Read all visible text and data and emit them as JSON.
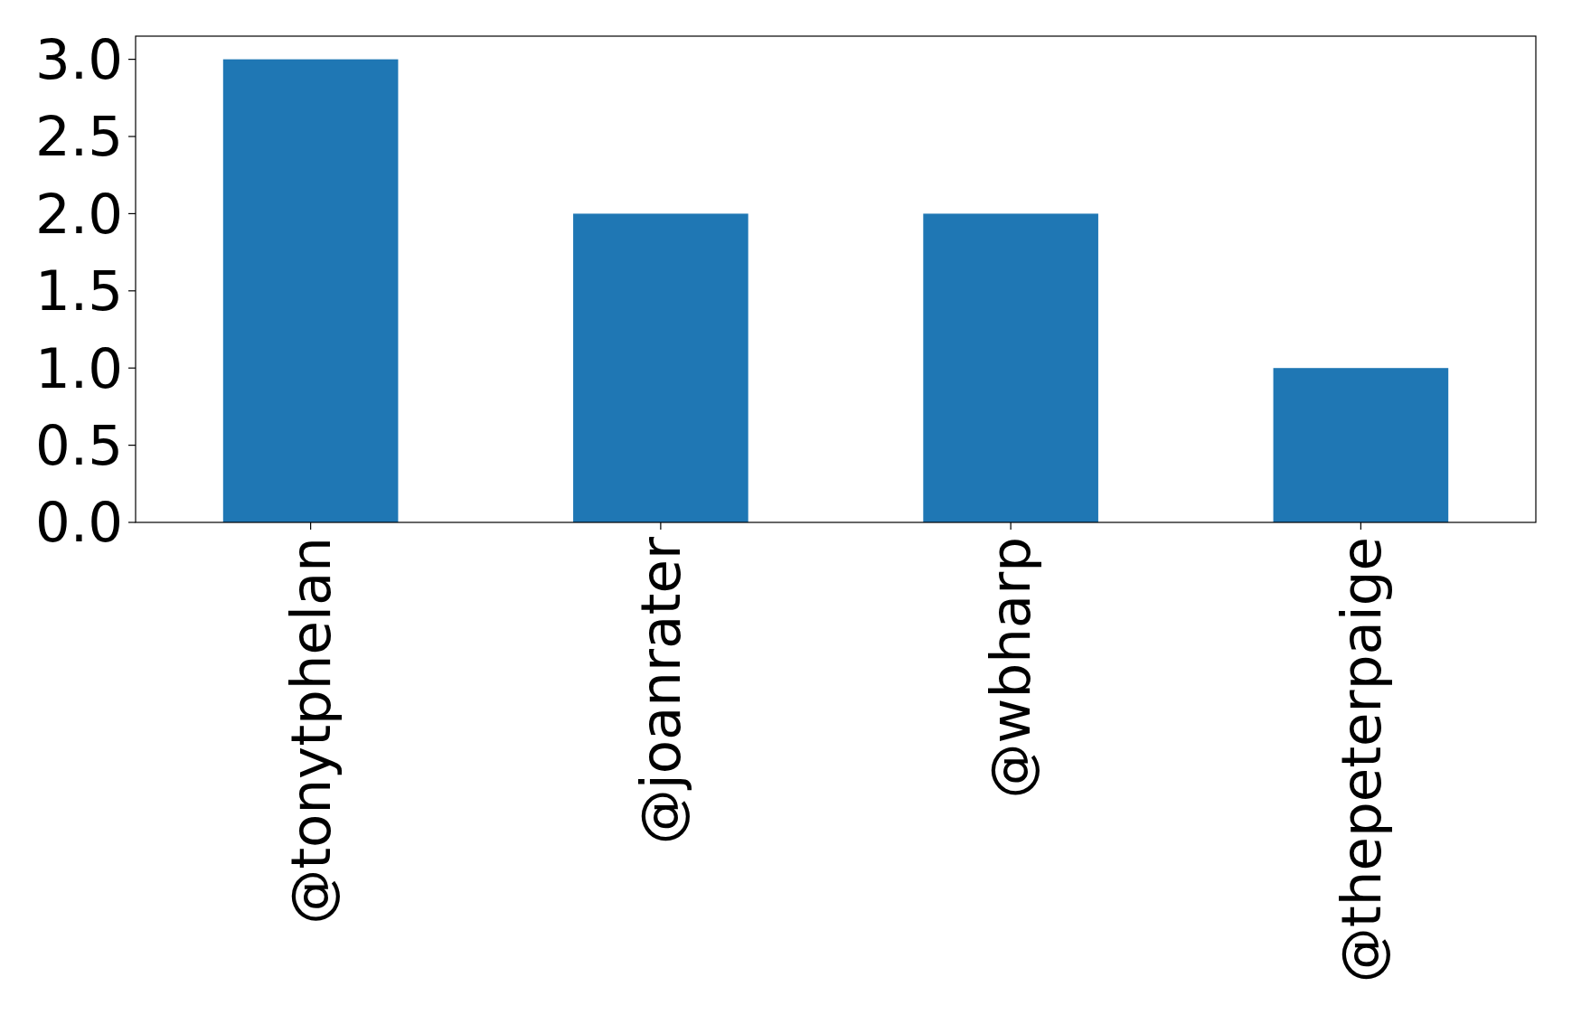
{
  "chart_data": {
    "type": "bar",
    "categories": [
      "@tonytphelan",
      "@joanrater",
      "@wbharp",
      "@thepeterpaige"
    ],
    "values": [
      3,
      2,
      2,
      1
    ],
    "color": "#1f77b4",
    "ylim": [
      0,
      3.15
    ],
    "yticks": [
      {
        "value": 0,
        "label": "0.0"
      },
      {
        "value": 0.5,
        "label": "0.5"
      },
      {
        "value": 1,
        "label": "1.0"
      },
      {
        "value": 1.5,
        "label": "1.5"
      },
      {
        "value": 2,
        "label": "2.0"
      },
      {
        "value": 2.5,
        "label": "2.5"
      },
      {
        "value": 3,
        "label": "3.0"
      }
    ],
    "grid": false
  }
}
